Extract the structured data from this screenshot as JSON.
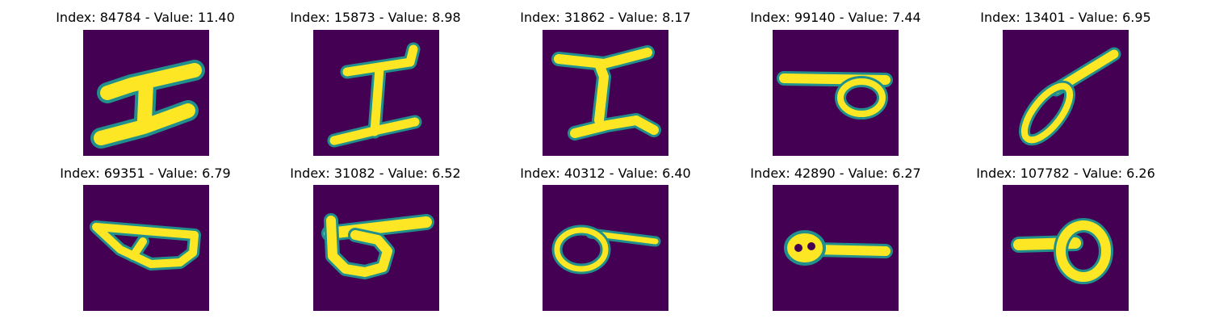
{
  "colormap": {
    "background": "#440154",
    "mid": "#21908c",
    "stroke": "#fde725"
  },
  "panels": [
    {
      "title": "Index: 84784 - Value: 11.40",
      "index": 84784,
      "value": 11.4,
      "glyph": "letter-I-serif"
    },
    {
      "title": "Index: 15873 - Value: 8.98",
      "index": 15873,
      "value": 8.98,
      "glyph": "letter-I-serif"
    },
    {
      "title": "Index: 31862 - Value: 8.17",
      "index": 31862,
      "value": 8.17,
      "glyph": "letter-I-serif"
    },
    {
      "title": "Index: 99140 - Value: 7.44",
      "index": 99140,
      "value": 7.44,
      "glyph": "loop-with-bar"
    },
    {
      "title": "Index: 13401 - Value: 6.95",
      "index": 13401,
      "value": 6.95,
      "glyph": "slanted-loop"
    },
    {
      "title": "Index: 69351 - Value: 6.79",
      "index": 69351,
      "value": 6.79,
      "glyph": "bowl-shape"
    },
    {
      "title": "Index: 31082 - Value: 6.52",
      "index": 31082,
      "value": 6.52,
      "glyph": "loop-with-bar"
    },
    {
      "title": "Index: 40312 - Value: 6.40",
      "index": 40312,
      "value": 6.4,
      "glyph": "loop-with-tail"
    },
    {
      "title": "Index: 42890 - Value: 6.27",
      "index": 42890,
      "value": 6.27,
      "glyph": "loop-with-tail"
    },
    {
      "title": "Index: 107782 - Value: 6.26",
      "index": 107782,
      "value": 6.26,
      "glyph": "loop-with-bar"
    }
  ]
}
